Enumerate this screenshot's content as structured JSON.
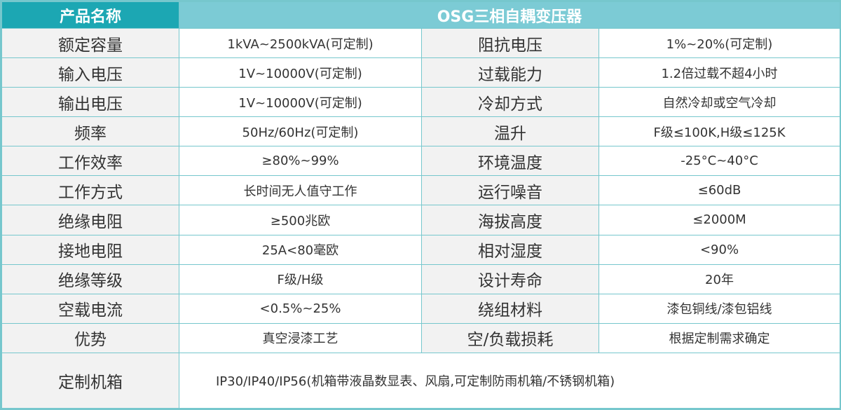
{
  "header": {
    "col1": "产品名称",
    "col2": "OSG三相自耦变压器"
  },
  "colors": {
    "header_dark": "#1ca7b3",
    "header_light": "#7ccbd5",
    "border": "#76c7cd"
  },
  "rows": [
    {
      "label1": "额定容量",
      "value1": "1kVA~2500kVA(可定制)",
      "label2": "阻抗电压",
      "value2": "1%~20%(可定制)"
    },
    {
      "label1": "输入电压",
      "value1": "1V~10000V(可定制)",
      "label2": "过载能力",
      "value2": "1.2倍过载不超4小时"
    },
    {
      "label1": "输出电压",
      "value1": "1V~10000V(可定制)",
      "label2": "冷却方式",
      "value2": "自然冷却或空气冷却"
    },
    {
      "label1": "频率",
      "value1": "50Hz/60Hz(可定制)",
      "label2": "温升",
      "value2": "F级≤100K,H级≤125K"
    },
    {
      "label1": "工作效率",
      "value1": "≥80%~99%",
      "label2": "环境温度",
      "value2": "-25°C~40°C"
    },
    {
      "label1": "工作方式",
      "value1": "长时间无人值守工作",
      "label2": "运行噪音",
      "value2": "≤60dB"
    },
    {
      "label1": "绝缘电阻",
      "value1": "≥500兆欧",
      "label2": "海拔高度",
      "value2": "≤2000M"
    },
    {
      "label1": "接地电阻",
      "value1": "25A<80毫欧",
      "label2": "相对湿度",
      "value2": "<90%"
    },
    {
      "label1": "绝缘等级",
      "value1": "F级/H级",
      "label2": "设计寿命",
      "value2": "20年"
    },
    {
      "label1": "空载电流",
      "value1": "<0.5%~25%",
      "label2": "绕组材料",
      "value2": "漆包铜线/漆包铝线"
    },
    {
      "label1": "优势",
      "value1": "真空浸漆工艺",
      "label2": "空/负载损耗",
      "value2": "根据定制需求确定"
    }
  ],
  "last_row": {
    "label": "定制机箱",
    "value": "IP30/IP40/IP56(机箱带液晶数显表、风扇,可定制防雨机箱/不锈钢机箱)"
  }
}
